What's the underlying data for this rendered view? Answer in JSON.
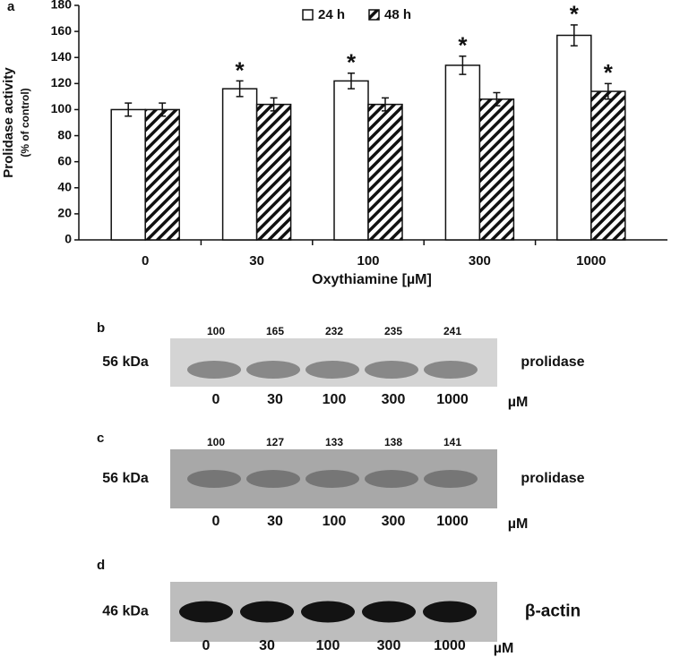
{
  "panel_label": "a",
  "chart_data": {
    "type": "bar",
    "ylabel": "Prolidase activity",
    "ylabel_sub": "(% of control)",
    "xlabel": "Oxythiamine [µM]",
    "categories": [
      "0",
      "30",
      "100",
      "300",
      "1000"
    ],
    "series": [
      {
        "name": "24 h",
        "color": "#ffffff",
        "values": [
          100,
          116,
          122,
          134,
          157
        ],
        "errors": [
          5,
          6,
          6,
          7,
          8
        ],
        "markers": [
          null,
          "*",
          "*",
          "*",
          "*"
        ]
      },
      {
        "name": "48 h",
        "color": "hatch",
        "values": [
          100,
          104,
          104,
          108,
          114
        ],
        "errors": [
          5,
          5,
          5,
          5,
          6
        ],
        "markers": [
          null,
          null,
          null,
          null,
          "*"
        ]
      }
    ],
    "ylim": [
      0,
      180
    ],
    "yticks": [
      0,
      20,
      40,
      60,
      80,
      100,
      120,
      140,
      160,
      180
    ],
    "legend": "top"
  },
  "blots": [
    {
      "label": "b",
      "densities": [
        100,
        165,
        232,
        235,
        241
      ],
      "marker": "56 kDa",
      "protein": "prolidase",
      "lanes": [
        "0",
        "30",
        "100",
        "300",
        "1000"
      ],
      "unit": "µM"
    },
    {
      "label": "c",
      "densities": [
        100,
        127,
        133,
        138,
        141
      ],
      "marker": "56 kDa",
      "protein": "prolidase",
      "lanes": [
        "0",
        "30",
        "100",
        "300",
        "1000"
      ],
      "unit": "µM"
    },
    {
      "label": "d",
      "marker": "46 kDa",
      "protein": "β-actin",
      "lanes": [
        "0",
        "30",
        "100",
        "300",
        "1000"
      ],
      "unit": "µM"
    }
  ]
}
